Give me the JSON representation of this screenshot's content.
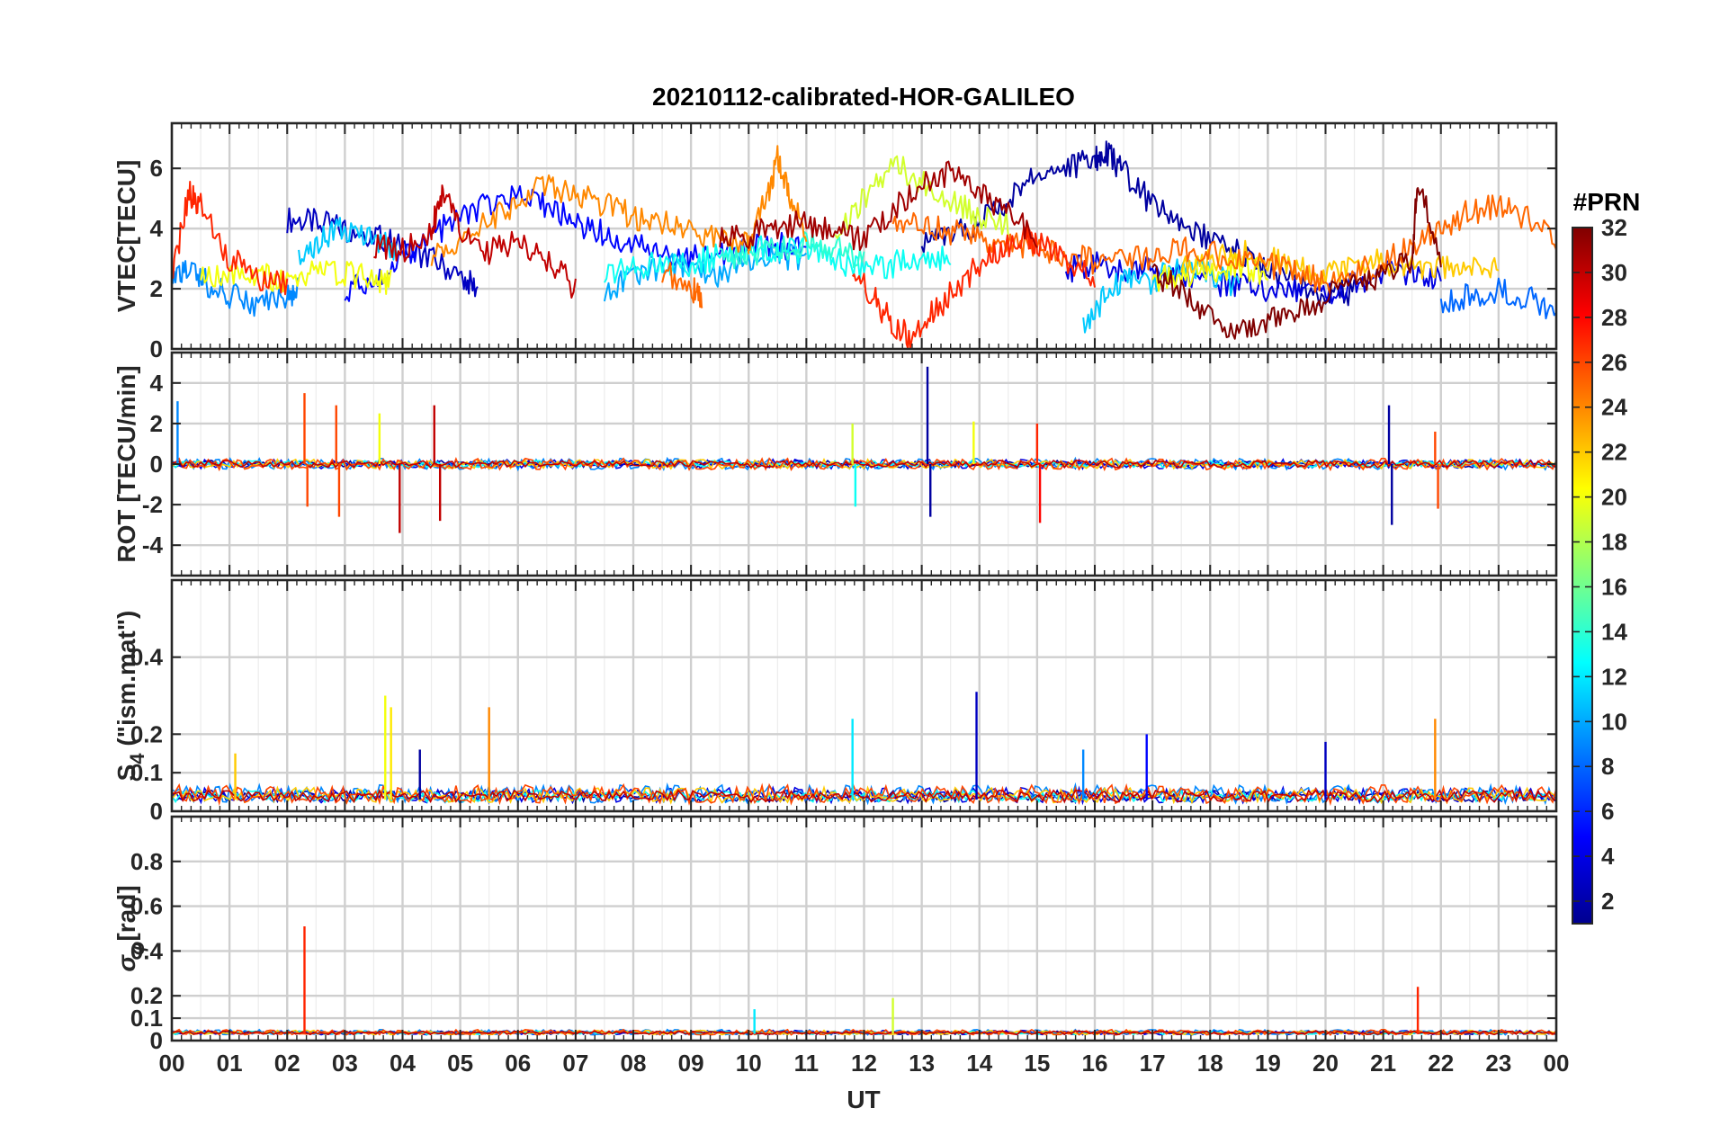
{
  "chart_data": {
    "type": "line",
    "title": "20210112-calibrated-HOR-GALILEO",
    "xlabel": "UT",
    "x_ticks": [
      "00",
      "01",
      "02",
      "03",
      "04",
      "05",
      "06",
      "07",
      "08",
      "09",
      "10",
      "11",
      "12",
      "13",
      "14",
      "15",
      "16",
      "17",
      "18",
      "19",
      "20",
      "21",
      "22",
      "23",
      "00"
    ],
    "xlim": [
      0,
      24
    ],
    "grid": true,
    "colormap": "jet",
    "colorbar": {
      "label": "#PRN",
      "range": [
        1,
        32
      ],
      "ticks": [
        "2",
        "4",
        "6",
        "8",
        "10",
        "12",
        "14",
        "16",
        "18",
        "20",
        "22",
        "24",
        "26",
        "28",
        "30",
        "32"
      ]
    },
    "panels": [
      {
        "ylabel": "VTEC[TECU]",
        "ylim": [
          0,
          7.5
        ],
        "yticks": [
          "0",
          "2",
          "4",
          "6"
        ],
        "series": [
          {
            "prn": 3,
            "x": [
              2.0,
              2.5,
              3.0,
              3.5,
              4.0,
              4.5,
              5.0,
              5.3
            ],
            "y": [
              4.3,
              4.2,
              4.0,
              3.8,
              3.4,
              3.0,
              2.4,
              2.0
            ]
          },
          {
            "prn": 5,
            "x": [
              3.0,
              3.5,
              4.0,
              4.5,
              5.0,
              5.5,
              6.0,
              6.5,
              7.0,
              7.5,
              8.0,
              8.5,
              9.0,
              9.5,
              10.0,
              10.5,
              11.0
            ],
            "y": [
              2.0,
              2.2,
              3.0,
              3.8,
              4.3,
              4.8,
              5.0,
              4.7,
              4.2,
              3.8,
              3.4,
              3.2,
              3.0,
              3.1,
              3.3,
              3.5,
              3.2
            ]
          },
          {
            "prn": 2,
            "x": [
              13.0,
              13.5,
              14.0,
              14.5,
              15.0,
              15.5,
              16.0,
              16.2,
              16.5,
              17.0,
              17.5,
              18.0,
              18.5,
              19.0,
              19.5,
              20.0,
              20.5
            ],
            "y": [
              3.6,
              3.8,
              4.2,
              5.0,
              5.8,
              6.0,
              6.3,
              6.5,
              5.9,
              4.8,
              4.1,
              3.7,
              3.2,
              2.6,
              2.1,
              1.8,
              1.9
            ]
          },
          {
            "prn": 4,
            "x": [
              15.5,
              16.0,
              16.5,
              17.0,
              17.5,
              18.0,
              18.5,
              19.0,
              19.5,
              20.0,
              20.5,
              21.0,
              21.5,
              22.0
            ],
            "y": [
              2.6,
              2.8,
              2.5,
              2.7,
              2.4,
              2.2,
              2.1,
              2.0,
              1.9,
              1.8,
              2.2,
              2.6,
              2.5,
              2.4
            ]
          },
          {
            "prn": 8,
            "x": [
              22.0,
              22.5,
              23.0,
              23.5,
              24.0
            ],
            "y": [
              1.6,
              1.8,
              2.0,
              1.7,
              1.2
            ]
          },
          {
            "prn": 9,
            "x": [
              0.0,
              0.3,
              0.6,
              1.0,
              1.5,
              2.0,
              2.2
            ],
            "y": [
              2.4,
              2.7,
              2.2,
              1.8,
              1.5,
              1.8,
              2.0
            ]
          },
          {
            "prn": 10,
            "x": [
              7.5,
              8.0,
              8.5,
              9.0,
              9.5,
              10.0,
              10.5,
              11.0
            ],
            "y": [
              1.8,
              2.4,
              2.8,
              2.6,
              2.5,
              2.9,
              3.1,
              3.0
            ]
          },
          {
            "prn": 11,
            "x": [
              2.2,
              2.6,
              3.0,
              3.5,
              3.9
            ],
            "y": [
              3.0,
              3.6,
              4.0,
              3.7,
              3.3
            ]
          },
          {
            "prn": 11,
            "x": [
              15.8,
              16.2,
              16.6,
              17.0,
              17.5,
              18.0,
              18.5
            ],
            "y": [
              0.6,
              1.8,
              2.4,
              2.2,
              2.9,
              2.4,
              2.1
            ]
          },
          {
            "prn": 13,
            "x": [
              7.5,
              8.0,
              8.5,
              9.0,
              9.5,
              10.0,
              10.5,
              11.0,
              11.5,
              12.0,
              12.5,
              13.0,
              13.5
            ],
            "y": [
              2.6,
              2.7,
              2.9,
              2.8,
              3.1,
              3.4,
              3.2,
              3.3,
              3.0,
              2.6,
              2.8,
              3.1,
              3.0
            ]
          },
          {
            "prn": 14,
            "x": [
              9.5,
              10.0,
              10.5,
              11.0,
              11.5,
              12.0
            ],
            "y": [
              3.0,
              3.2,
              3.3,
              3.5,
              3.4,
              2.9
            ]
          },
          {
            "prn": 19,
            "x": [
              11.5,
              12.0,
              12.5,
              13.0,
              13.5,
              14.0,
              14.5
            ],
            "y": [
              3.8,
              5.0,
              6.2,
              5.5,
              5.0,
              4.4,
              4.2
            ]
          },
          {
            "prn": 20,
            "x": [
              0.5,
              1.0,
              1.5,
              2.0,
              2.5,
              3.0,
              3.5,
              3.8
            ],
            "y": [
              2.4,
              2.6,
              2.5,
              2.2,
              2.6,
              2.5,
              2.4,
              2.2
            ]
          },
          {
            "prn": 20,
            "x": [
              17.0,
              17.5,
              18.0,
              18.5,
              19.0
            ],
            "y": [
              2.3,
              2.5,
              2.6,
              2.8,
              2.5
            ]
          },
          {
            "prn": 22,
            "x": [
              17.5,
              18.0,
              18.5,
              19.0,
              19.5,
              20.0,
              20.5,
              21.0,
              21.5,
              22.0,
              22.5,
              23.0
            ],
            "y": [
              2.8,
              3.0,
              3.2,
              3.0,
              2.7,
              2.5,
              2.7,
              2.9,
              2.8,
              2.7,
              2.6,
              2.6
            ]
          },
          {
            "prn": 24,
            "x": [
              4.5,
              5.0,
              5.5,
              6.0,
              6.5,
              7.0,
              7.5,
              8.0,
              8.5,
              9.0,
              9.5,
              10.0
            ],
            "y": [
              3.0,
              3.6,
              4.2,
              4.9,
              5.5,
              5.1,
              4.8,
              4.4,
              4.2,
              3.8,
              3.6,
              3.5
            ]
          },
          {
            "prn": 24,
            "x": [
              10.0,
              10.3,
              10.5,
              10.7,
              11.0
            ],
            "y": [
              3.6,
              5.0,
              6.3,
              5.2,
              3.8
            ]
          },
          {
            "prn": 25,
            "x": [
              12.5,
              13.0,
              13.5,
              14.0,
              14.5,
              15.0,
              15.5,
              16.0,
              16.5,
              17.0,
              17.5,
              18.0,
              18.5,
              19.0,
              19.5,
              20.0,
              20.5,
              21.0,
              21.5,
              22.0,
              22.5,
              23.0,
              23.5,
              24.0
            ],
            "y": [
              4.0,
              4.2,
              3.9,
              3.6,
              3.5,
              3.3,
              3.1,
              2.9,
              3.0,
              3.1,
              3.3,
              3.2,
              2.9,
              2.8,
              2.6,
              2.2,
              2.5,
              2.9,
              3.4,
              4.0,
              4.6,
              4.7,
              4.4,
              3.6
            ]
          },
          {
            "prn": 25,
            "x": [
              8.5,
              9.0,
              9.2
            ],
            "y": [
              2.6,
              2.0,
              1.7
            ]
          },
          {
            "prn": 27,
            "x": [
              0.0,
              0.3,
              0.5,
              1.0,
              1.5,
              2.0
            ],
            "y": [
              2.4,
              5.2,
              4.8,
              3.0,
              2.4,
              2.2
            ]
          },
          {
            "prn": 27,
            "x": [
              11.8,
              12.2,
              12.5,
              12.8,
              13.2,
              13.6,
              14.0,
              14.4,
              14.8,
              15.0,
              15.5,
              16.0
            ],
            "y": [
              2.6,
              1.6,
              0.8,
              0.4,
              1.2,
              2.0,
              2.8,
              3.4,
              3.8,
              3.5,
              3.0,
              2.4
            ]
          },
          {
            "prn": 30,
            "x": [
              3.5,
              4.0,
              4.5,
              4.7,
              5.0,
              5.5,
              6.0,
              6.5,
              7.0
            ],
            "y": [
              3.4,
              3.3,
              4.0,
              5.2,
              3.9,
              3.2,
              3.6,
              3.0,
              2.0
            ]
          },
          {
            "prn": 31,
            "x": [
              9.5,
              10.0,
              10.5,
              11.0,
              11.5,
              12.0,
              12.5,
              13.0,
              13.5,
              14.0,
              14.5,
              15.0
            ],
            "y": [
              3.6,
              3.8,
              4.1,
              4.2,
              4.0,
              3.6,
              4.6,
              5.5,
              5.9,
              5.2,
              4.6,
              3.6
            ]
          },
          {
            "prn": 32,
            "x": [
              17.0,
              17.5,
              18.0,
              18.5,
              19.0,
              19.5,
              20.0,
              20.5,
              21.0,
              21.5,
              21.6,
              22.0
            ],
            "y": [
              2.5,
              2.0,
              1.0,
              0.6,
              1.0,
              1.3,
              1.7,
              2.2,
              2.5,
              3.0,
              5.7,
              3.0
            ]
          }
        ]
      },
      {
        "ylabel": "ROT [TECU/min]",
        "ylim": [
          -5.5,
          5.5
        ],
        "yticks": [
          "-4",
          "-2",
          "0",
          "2",
          "4"
        ],
        "spikes": [
          {
            "prn": 9,
            "x": 0.1,
            "y": 3.1
          },
          {
            "prn": 26,
            "x": 2.3,
            "y": 3.5
          },
          {
            "prn": 26,
            "x": 2.35,
            "y": -2.1
          },
          {
            "prn": 26,
            "x": 2.85,
            "y": 2.9
          },
          {
            "prn": 26,
            "x": 2.9,
            "y": -2.6
          },
          {
            "prn": 20,
            "x": 3.6,
            "y": 2.5
          },
          {
            "prn": 30,
            "x": 3.95,
            "y": -3.4
          },
          {
            "prn": 30,
            "x": 4.55,
            "y": 2.9
          },
          {
            "prn": 30,
            "x": 4.65,
            "y": -2.8
          },
          {
            "prn": 19,
            "x": 11.8,
            "y": 2.0
          },
          {
            "prn": 13,
            "x": 11.85,
            "y": -2.1
          },
          {
            "prn": 2,
            "x": 13.1,
            "y": 4.8
          },
          {
            "prn": 2,
            "x": 13.15,
            "y": -2.6
          },
          {
            "prn": 20,
            "x": 13.9,
            "y": 2.1
          },
          {
            "prn": 27,
            "x": 15.0,
            "y": 2.0
          },
          {
            "prn": 28,
            "x": 15.05,
            "y": -2.9
          },
          {
            "prn": 2,
            "x": 21.1,
            "y": 2.9
          },
          {
            "prn": 2,
            "x": 21.15,
            "y": -3.0
          },
          {
            "prn": 26,
            "x": 21.9,
            "y": 1.6
          },
          {
            "prn": 26,
            "x": 21.95,
            "y": -2.2
          }
        ]
      },
      {
        "ylabel": "S4 (\"ism.mat\")",
        "ylabel_main": "S",
        "ylabel_sub": "4",
        "ylabel_rest": " (\"ism.mat\")",
        "ylim": [
          0,
          0.6
        ],
        "yticks": [
          "0",
          "0.1",
          "0.2",
          "0.4"
        ],
        "spikes": [
          {
            "prn": 20,
            "x": 3.7,
            "y": 0.3
          },
          {
            "prn": 21,
            "x": 3.8,
            "y": 0.27
          },
          {
            "prn": 24,
            "x": 5.5,
            "y": 0.27
          },
          {
            "prn": 12,
            "x": 11.8,
            "y": 0.24
          },
          {
            "prn": 3,
            "x": 13.95,
            "y": 0.31
          },
          {
            "prn": 24,
            "x": 21.9,
            "y": 0.24
          },
          {
            "prn": 22,
            "x": 1.1,
            "y": 0.15
          },
          {
            "prn": 2,
            "x": 4.3,
            "y": 0.16
          },
          {
            "prn": 9,
            "x": 15.8,
            "y": 0.16
          },
          {
            "prn": 5,
            "x": 16.9,
            "y": 0.2
          },
          {
            "prn": 3,
            "x": 20.0,
            "y": 0.18
          }
        ]
      },
      {
        "ylabel": "σφ[rad]",
        "ylabel_main": "σ",
        "ylabel_sub": "φ",
        "ylabel_rest": "[rad]",
        "ylim": [
          0,
          1.0
        ],
        "yticks": [
          "0",
          "0.1",
          "0.2",
          "0.4",
          "0.6",
          "0.8"
        ],
        "spikes": [
          {
            "prn": 27,
            "x": 2.3,
            "y": 0.51
          },
          {
            "prn": 27,
            "x": 21.6,
            "y": 0.24
          },
          {
            "prn": 19,
            "x": 12.5,
            "y": 0.19
          },
          {
            "prn": 12,
            "x": 10.1,
            "y": 0.14
          }
        ]
      }
    ]
  }
}
